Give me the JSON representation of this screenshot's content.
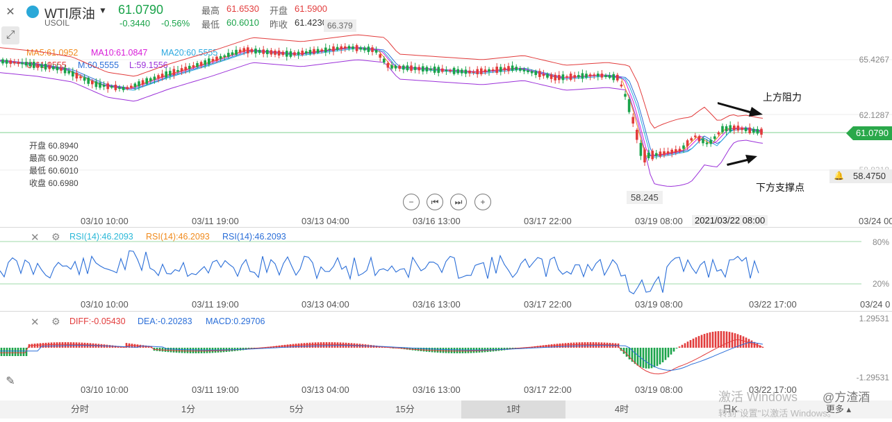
{
  "header": {
    "symbol": "WTI原油",
    "code": "USOIL",
    "price": "61.0790",
    "change": "-0.3440",
    "change_pct": "-0.56%",
    "high_label": "最高",
    "high_value": "61.6530",
    "open_label": "开盘",
    "open_value": "61.5900",
    "low_label": "最低",
    "low_value": "60.6010",
    "prev_label": "昨收",
    "prev_value": "61.4230"
  },
  "ma_legend": {
    "ma5": "MA5:61.0952",
    "ma10": "MA10:61.0847",
    "ma20": "MA20:60.5555",
    "u": "U:61.9555",
    "m": "M:60.5555",
    "l": "L:59.1556"
  },
  "ohlc_box": {
    "open": "开盘 60.8940",
    "high": "最高 60.9020",
    "low": "最低 60.6010",
    "close": "收盘 60.6980"
  },
  "main_chart": {
    "peak_label": "66.379",
    "low_label": "58.245",
    "y_labels": [
      "65.4267",
      "62.1287",
      "58.8318"
    ],
    "current_price": "61.0790",
    "alert_price": "58.4750",
    "annot_resistance": "上方阻力",
    "annot_support": "下方支撑点",
    "x_labels": [
      "03/10 10:00",
      "03/11 19:00",
      "03/13 04:00",
      "03/16 13:00",
      "03/17 22:00",
      "03/19 08:00",
      "03/24 00"
    ],
    "crosshair_time": "2021/03/22 08:00"
  },
  "rsi": {
    "legend1": "RSI(14):46.2093",
    "legend2": "RSI(14):46.2093",
    "legend3": "RSI(14):46.2093",
    "y_top": "80%",
    "y_bottom": "20%",
    "x_labels": [
      "03/10 10:00",
      "03/11 19:00",
      "03/13 04:00",
      "03/16 13:00",
      "03/17 22:00",
      "03/19 08:00",
      "03/22 17:00",
      "03/24 0"
    ]
  },
  "macd": {
    "diff": "DIFF:-0.05430",
    "dea": "DEA:-0.20283",
    "macd": "MACD:0.29706",
    "y_top": "1.29531",
    "y_bottom": "-1.29531",
    "x_labels": [
      "03/10 10:00",
      "03/11 19:00",
      "03/13 04:00",
      "03/16 13:00",
      "03/17 22:00",
      "03/19 08:00",
      "03/22 17:00"
    ]
  },
  "timeframes": [
    "分时",
    "1分",
    "5分",
    "15分",
    "1时",
    "4时",
    "日K",
    "更多"
  ],
  "active_timeframe": "1时",
  "watermark": {
    "line1": "激活 Windows",
    "line2": "转到\"设置\"以激活 Windows。",
    "author": "@方渣酒"
  },
  "colors": {
    "up": "#e23b3b",
    "down": "#1aa34a",
    "ma5": "#f08a1c",
    "ma10": "#d81bd8",
    "ma20": "#2aa8e0",
    "boll_u": "#e23b3b",
    "boll_m": "#2a6ed8",
    "boll_l": "#9b30d9"
  }
}
